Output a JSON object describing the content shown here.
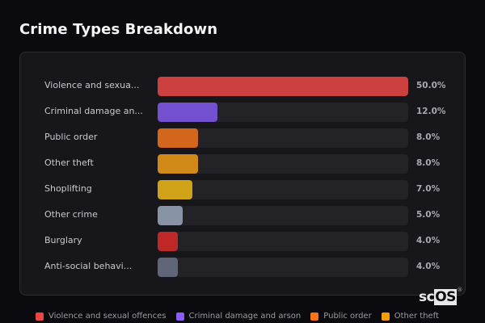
{
  "title": "Crime Types Breakdown",
  "chart_data": {
    "type": "bar",
    "orientation": "horizontal",
    "title": "Crime Types Breakdown",
    "categories": [
      "Violence and sexual offences",
      "Criminal damage and arson",
      "Public order",
      "Other theft",
      "Shoplifting",
      "Other crime",
      "Burglary",
      "Anti-social behaviour"
    ],
    "display_labels": [
      "Violence and sexua...",
      "Criminal damage an...",
      "Public order",
      "Other theft",
      "Shoplifting",
      "Other crime",
      "Burglary",
      "Anti-social behavi..."
    ],
    "values": [
      50.0,
      12.0,
      8.0,
      8.0,
      7.0,
      5.0,
      4.0,
      4.0
    ],
    "value_labels": [
      "50.0%",
      "12.0%",
      "8.0%",
      "8.0%",
      "7.0%",
      "5.0%",
      "4.0%",
      "4.0%"
    ],
    "colors": [
      "#cc4040",
      "#7350d0",
      "#d2661c",
      "#d18a18",
      "#d0a218",
      "#8893a6",
      "#c02828",
      "#5e6678"
    ],
    "xlabel": "",
    "ylabel": "",
    "xlim": [
      0,
      50
    ],
    "unit": "%",
    "grid": false,
    "legend_position": "bottom"
  },
  "legend": [
    {
      "label": "Violence and sexual offences",
      "color": "#ef4444"
    },
    {
      "label": "Criminal damage and arson",
      "color": "#8b5cf6"
    },
    {
      "label": "Public order",
      "color": "#f97316"
    },
    {
      "label": "Other theft",
      "color": "#f59e0b"
    }
  ],
  "watermark": {
    "sc": "sc",
    "os": "OS",
    "reg": "®"
  }
}
